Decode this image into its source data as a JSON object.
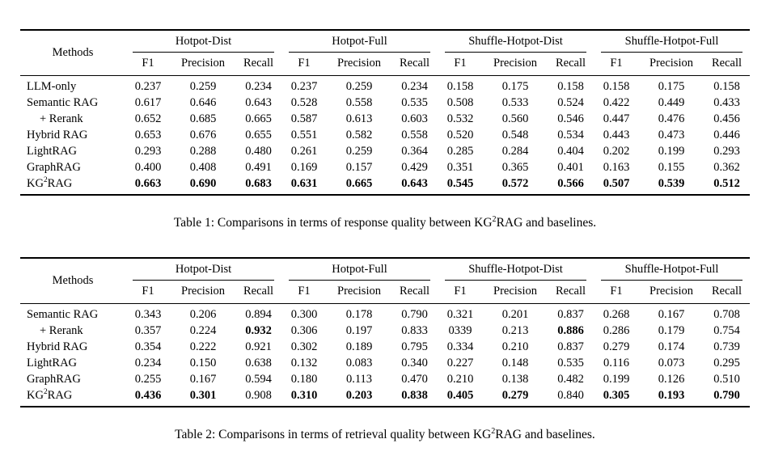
{
  "page": {
    "background": "#ffffff",
    "text_color": "#000000",
    "rule_color": "#000000"
  },
  "tables": [
    {
      "caption": {
        "prefix": "Table 1: Comparisons in terms of response quality between KG",
        "sup": "2",
        "suffix": "RAG and baselines."
      },
      "header": {
        "methods_label": "Methods",
        "groups": [
          {
            "label": "Hotpot-Dist",
            "cols": [
              "F1",
              "Precision",
              "Recall"
            ]
          },
          {
            "label": "Hotpot-Full",
            "cols": [
              "F1",
              "Precision",
              "Recall"
            ]
          },
          {
            "label": "Shuffle-Hotpot-Dist",
            "cols": [
              "F1",
              "Precision",
              "Recall"
            ]
          },
          {
            "label": "Shuffle-Hotpot-Full",
            "cols": [
              "F1",
              "Precision",
              "Recall"
            ]
          }
        ]
      },
      "rows": [
        {
          "method": "LLM-only",
          "values": [
            "0.237",
            "0.259",
            "0.234",
            "0.237",
            "0.259",
            "0.234",
            "0.158",
            "0.175",
            "0.158",
            "0.158",
            "0.175",
            "0.158"
          ],
          "bold": []
        },
        {
          "method": "Semantic RAG",
          "values": [
            "0.617",
            "0.646",
            "0.643",
            "0.528",
            "0.558",
            "0.535",
            "0.508",
            "0.533",
            "0.524",
            "0.422",
            "0.449",
            "0.433"
          ],
          "bold": []
        },
        {
          "method": "+ Rerank",
          "indent": true,
          "values": [
            "0.652",
            "0.685",
            "0.665",
            "0.587",
            "0.613",
            "0.603",
            "0.532",
            "0.560",
            "0.546",
            "0.447",
            "0.476",
            "0.456"
          ],
          "bold": []
        },
        {
          "method": "Hybrid RAG",
          "values": [
            "0.653",
            "0.676",
            "0.655",
            "0.551",
            "0.582",
            "0.558",
            "0.520",
            "0.548",
            "0.534",
            "0.443",
            "0.473",
            "0.446"
          ],
          "bold": []
        },
        {
          "method": "LightRAG",
          "values": [
            "0.293",
            "0.288",
            "0.480",
            "0.261",
            "0.259",
            "0.364",
            "0.285",
            "0.284",
            "0.404",
            "0.202",
            "0.199",
            "0.293"
          ],
          "bold": []
        },
        {
          "method": "GraphRAG",
          "values": [
            "0.400",
            "0.408",
            "0.491",
            "0.169",
            "0.157",
            "0.429",
            "0.351",
            "0.365",
            "0.401",
            "0.163",
            "0.155",
            "0.362"
          ],
          "bold": []
        },
        {
          "method": {
            "prefix": "KG",
            "sup": "2",
            "suffix": "RAG"
          },
          "values": [
            "0.663",
            "0.690",
            "0.683",
            "0.631",
            "0.665",
            "0.643",
            "0.545",
            "0.572",
            "0.566",
            "0.507",
            "0.539",
            "0.512"
          ],
          "bold": [
            0,
            1,
            2,
            3,
            4,
            5,
            6,
            7,
            8,
            9,
            10,
            11
          ]
        }
      ]
    },
    {
      "caption": {
        "prefix": "Table 2: Comparisons in terms of retrieval quality between KG",
        "sup": "2",
        "suffix": "RAG and baselines."
      },
      "header": {
        "methods_label": "Methods",
        "groups": [
          {
            "label": "Hotpot-Dist",
            "cols": [
              "F1",
              "Precision",
              "Recall"
            ]
          },
          {
            "label": "Hotpot-Full",
            "cols": [
              "F1",
              "Precision",
              "Recall"
            ]
          },
          {
            "label": "Shuffle-Hotpot-Dist",
            "cols": [
              "F1",
              "Precision",
              "Recall"
            ]
          },
          {
            "label": "Shuffle-Hotpot-Full",
            "cols": [
              "F1",
              "Precision",
              "Recall"
            ]
          }
        ]
      },
      "rows": [
        {
          "method": "Semantic RAG",
          "values": [
            "0.343",
            "0.206",
            "0.894",
            "0.300",
            "0.178",
            "0.790",
            "0.321",
            "0.201",
            "0.837",
            "0.268",
            "0.167",
            "0.708"
          ],
          "bold": []
        },
        {
          "method": "+ Rerank",
          "indent": true,
          "values": [
            "0.357",
            "0.224",
            "0.932",
            "0.306",
            "0.197",
            "0.833",
            "0339",
            "0.213",
            "0.886",
            "0.286",
            "0.179",
            "0.754"
          ],
          "bold": [
            2,
            8
          ]
        },
        {
          "method": "Hybrid RAG",
          "values": [
            "0.354",
            "0.222",
            "0.921",
            "0.302",
            "0.189",
            "0.795",
            "0.334",
            "0.210",
            "0.837",
            "0.279",
            "0.174",
            "0.739"
          ],
          "bold": []
        },
        {
          "method": "LightRAG",
          "values": [
            "0.234",
            "0.150",
            "0.638",
            "0.132",
            "0.083",
            "0.340",
            "0.227",
            "0.148",
            "0.535",
            "0.116",
            "0.073",
            "0.295"
          ],
          "bold": []
        },
        {
          "method": "GraphRAG",
          "values": [
            "0.255",
            "0.167",
            "0.594",
            "0.180",
            "0.113",
            "0.470",
            "0.210",
            "0.138",
            "0.482",
            "0.199",
            "0.126",
            "0.510"
          ],
          "bold": []
        },
        {
          "method": {
            "prefix": "KG",
            "sup": "2",
            "suffix": "RAG"
          },
          "values": [
            "0.436",
            "0.301",
            "0.908",
            "0.310",
            "0.203",
            "0.838",
            "0.405",
            "0.279",
            "0.840",
            "0.305",
            "0.193",
            "0.790"
          ],
          "bold": [
            0,
            1,
            3,
            4,
            5,
            6,
            7,
            9,
            10,
            11
          ]
        }
      ]
    }
  ]
}
